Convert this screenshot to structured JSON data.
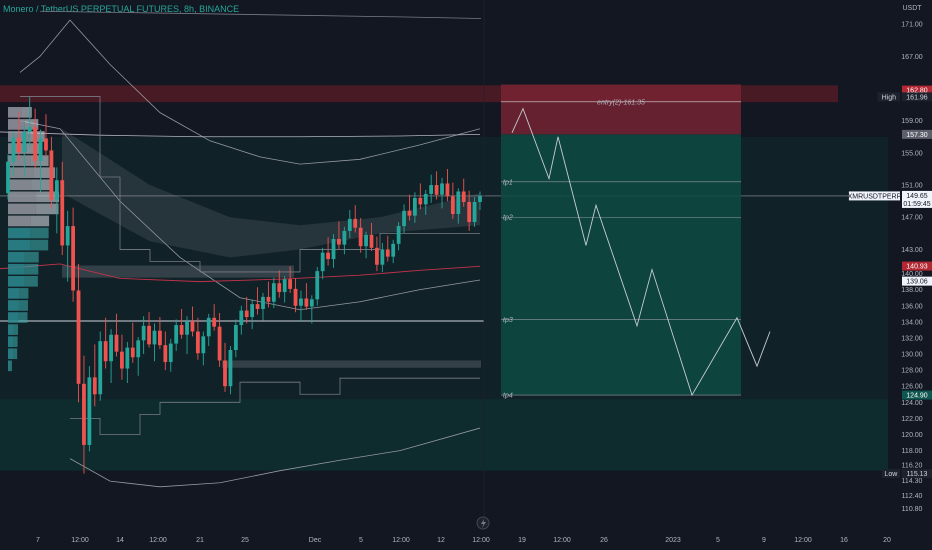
{
  "header": {
    "title": "Monero / TetherUS PERPETUAL FUTURES, 8h, BINANCE"
  },
  "axis": {
    "unit": "USDT"
  },
  "colors": {
    "background": "#131722",
    "up": "#26a69a",
    "down": "#ef5350",
    "stop_zone": "#6b1f2a",
    "target_zone": "#0e3b37",
    "volume_profile_up": "#2b8a8f",
    "volume_profile_neutral": "#9598a1"
  },
  "chart_data": {
    "type": "candlestick",
    "symbol": "XMRUSDTPERP",
    "timeframe": "8h",
    "ylim": [
      109,
      174
    ],
    "y_ticks": [
      110.8,
      112.4,
      114.3,
      116.2,
      118.0,
      120.0,
      122.0,
      124.0,
      126.0,
      128.0,
      130.0,
      132.0,
      134.0,
      136.0,
      138.0,
      140.0,
      143.0,
      147.0,
      151.0,
      155.0,
      159.0,
      163.0,
      167.0,
      171.0
    ],
    "x_ticks": [
      "7",
      "12:00",
      "14",
      "12:00",
      "21",
      "25",
      "Dec",
      "5",
      "12:00",
      "12",
      "12:00",
      "19",
      "12:00",
      "26",
      "2023",
      "5",
      "9",
      "12:00",
      "16",
      "20"
    ],
    "price_tags": [
      {
        "value": "162.80",
        "style": "red"
      },
      {
        "label": "High",
        "value": "161.96",
        "style": "dark"
      },
      {
        "value": "157.30",
        "style": "gray"
      },
      {
        "label": "XMRUSDTPERP",
        "value": "149.65",
        "countdown": "01:59:45",
        "style": "light"
      },
      {
        "value": "140.93",
        "style": "red"
      },
      {
        "value": "139.06",
        "style": "light"
      },
      {
        "value": "124.90",
        "style": "teal"
      },
      {
        "label": "Low",
        "value": "115.13",
        "style": "dark"
      }
    ],
    "position": {
      "entry_label": "entry(2)-161.35",
      "entry": 161.35,
      "stop": 162.8,
      "zone_top": 163.5,
      "tps": [
        {
          "name": "tp1",
          "value": 151.4
        },
        {
          "name": "tp2",
          "value": 147.0
        },
        {
          "name": "tp3",
          "value": 134.3
        },
        {
          "name": "tp4",
          "value": 124.9
        }
      ]
    },
    "projection_path": [
      157.5,
      160.5,
      151.8,
      157.0,
      143.5,
      148.5,
      133.5,
      140.5,
      124.9,
      134.5,
      128.5,
      132.8
    ],
    "current_price": 149.65,
    "horizontal_levels": [
      140.93,
      134.1,
      157.3
    ],
    "gray_boxes": [
      {
        "from": 139.5,
        "to": 141.0
      },
      {
        "from": 128.3,
        "to": 129.2
      }
    ],
    "ohlc": [
      [
        150.0,
        154.8,
        149.2,
        153.9
      ],
      [
        153.9,
        157.7,
        152.1,
        156.9
      ],
      [
        156.9,
        160.1,
        154.2,
        155.1
      ],
      [
        155.1,
        158.4,
        152.0,
        157.6
      ],
      [
        157.6,
        161.96,
        155.8,
        158.2
      ],
      [
        158.2,
        160.5,
        153.1,
        154.0
      ],
      [
        154.0,
        157.9,
        150.2,
        156.8
      ],
      [
        156.8,
        159.8,
        154.5,
        155.3
      ],
      [
        155.3,
        157.0,
        148.1,
        149.2
      ],
      [
        149.2,
        153.2,
        145.0,
        151.6
      ],
      [
        151.6,
        153.9,
        142.3,
        143.5
      ],
      [
        143.5,
        147.8,
        139.0,
        145.9
      ],
      [
        145.9,
        148.2,
        136.5,
        137.9
      ],
      [
        137.9,
        141.2,
        124.0,
        126.3
      ],
      [
        126.3,
        129.8,
        115.13,
        118.7
      ],
      [
        118.7,
        128.5,
        117.9,
        127.1
      ],
      [
        127.1,
        131.2,
        123.5,
        125.0
      ],
      [
        125.0,
        132.8,
        124.2,
        131.6
      ],
      [
        131.6,
        134.5,
        128.2,
        129.1
      ],
      [
        129.1,
        133.1,
        126.4,
        132.4
      ],
      [
        132.4,
        135.0,
        129.7,
        130.3
      ],
      [
        130.3,
        132.4,
        126.8,
        128.2
      ],
      [
        128.2,
        131.5,
        126.4,
        130.8
      ],
      [
        130.8,
        133.9,
        128.9,
        129.6
      ],
      [
        129.6,
        132.1,
        127.3,
        131.7
      ],
      [
        131.7,
        134.7,
        130.0,
        133.5
      ],
      [
        133.5,
        135.2,
        130.8,
        131.2
      ],
      [
        131.2,
        133.8,
        129.1,
        132.9
      ],
      [
        132.9,
        134.6,
        130.6,
        131.1
      ],
      [
        131.1,
        132.8,
        128.0,
        129.0
      ],
      [
        129.0,
        131.9,
        127.8,
        131.3
      ],
      [
        131.3,
        134.3,
        130.4,
        133.6
      ],
      [
        133.6,
        135.6,
        131.9,
        132.4
      ],
      [
        132.4,
        134.7,
        130.0,
        134.1
      ],
      [
        134.1,
        135.9,
        132.2,
        132.8
      ],
      [
        132.8,
        134.5,
        129.3,
        130.1
      ],
      [
        130.1,
        132.8,
        128.6,
        132.2
      ],
      [
        132.2,
        135.0,
        131.0,
        134.5
      ],
      [
        134.5,
        136.2,
        132.9,
        133.4
      ],
      [
        133.4,
        135.1,
        128.4,
        129.2
      ],
      [
        129.2,
        131.4,
        125.3,
        126.0
      ],
      [
        126.0,
        131.0,
        125.0,
        130.5
      ],
      [
        130.5,
        134.3,
        129.6,
        133.6
      ],
      [
        133.6,
        136.0,
        132.4,
        135.4
      ],
      [
        135.4,
        137.1,
        133.8,
        134.6
      ],
      [
        134.6,
        136.8,
        133.1,
        136.2
      ],
      [
        136.2,
        138.3,
        134.9,
        135.6
      ],
      [
        135.6,
        137.6,
        134.2,
        137.1
      ],
      [
        137.1,
        139.0,
        135.8,
        136.5
      ],
      [
        136.5,
        139.5,
        135.7,
        138.8
      ],
      [
        138.8,
        140.4,
        137.0,
        137.7
      ],
      [
        137.7,
        139.7,
        136.4,
        139.3
      ],
      [
        139.3,
        140.9,
        137.6,
        138.1
      ],
      [
        138.1,
        139.4,
        135.2,
        136.0
      ],
      [
        136.0,
        137.9,
        134.1,
        136.9
      ],
      [
        136.9,
        138.8,
        135.5,
        135.9
      ],
      [
        135.9,
        137.3,
        133.8,
        136.8
      ],
      [
        136.8,
        140.8,
        136.0,
        140.3
      ],
      [
        140.3,
        143.2,
        139.3,
        142.6
      ],
      [
        142.6,
        144.5,
        141.0,
        141.8
      ],
      [
        141.8,
        144.9,
        140.7,
        144.3
      ],
      [
        144.3,
        146.5,
        143.0,
        143.6
      ],
      [
        143.6,
        145.8,
        142.4,
        145.3
      ],
      [
        145.3,
        147.9,
        144.4,
        146.8
      ],
      [
        146.8,
        148.5,
        145.1,
        145.7
      ],
      [
        145.7,
        146.9,
        142.6,
        143.4
      ],
      [
        143.4,
        145.2,
        141.9,
        144.8
      ],
      [
        144.8,
        146.3,
        142.8,
        143.2
      ],
      [
        143.2,
        144.6,
        140.3,
        141.1
      ],
      [
        141.1,
        143.8,
        140.2,
        143.0
      ],
      [
        143.0,
        144.7,
        141.5,
        142.1
      ],
      [
        142.1,
        144.2,
        141.3,
        143.7
      ],
      [
        143.7,
        146.4,
        142.9,
        145.9
      ],
      [
        145.9,
        148.6,
        145.0,
        147.8
      ],
      [
        147.8,
        149.8,
        146.6,
        147.2
      ],
      [
        147.2,
        150.1,
        146.3,
        149.4
      ],
      [
        149.4,
        151.2,
        148.0,
        148.6
      ],
      [
        148.6,
        150.4,
        147.3,
        149.9
      ],
      [
        149.9,
        152.3,
        148.8,
        151.0
      ],
      [
        151.0,
        152.7,
        149.2,
        149.8
      ],
      [
        149.8,
        151.9,
        148.1,
        151.2
      ],
      [
        151.2,
        153.0,
        149.0,
        149.6
      ],
      [
        149.6,
        151.3,
        146.8,
        147.4
      ],
      [
        147.4,
        150.6,
        146.2,
        150.2
      ],
      [
        150.2,
        151.8,
        148.3,
        148.9
      ],
      [
        148.9,
        150.3,
        145.3,
        146.4
      ],
      [
        146.4,
        149.5,
        145.8,
        148.9
      ],
      [
        148.9,
        150.2,
        147.9,
        149.65
      ]
    ]
  }
}
